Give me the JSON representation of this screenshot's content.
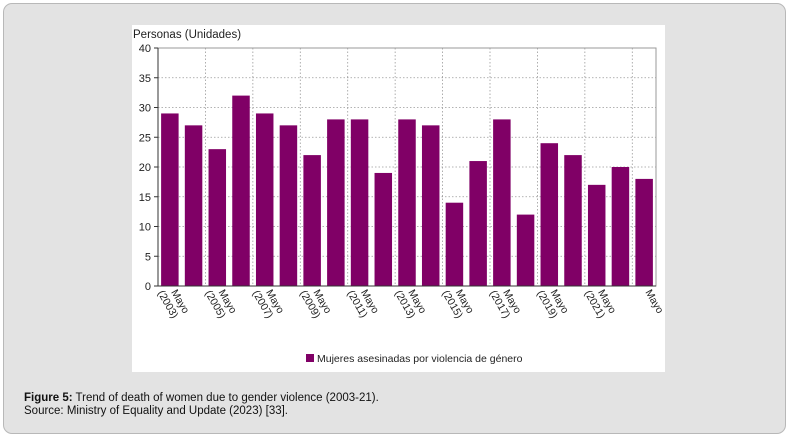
{
  "chart_data": {
    "type": "bar",
    "ylabel": "Personas (Unidades)",
    "ylim": [
      0,
      40
    ],
    "yticks": [
      0,
      5,
      10,
      15,
      20,
      25,
      30,
      35,
      40
    ],
    "grid": true,
    "legend_position": "bottom",
    "x_tick_labels": [
      {
        "line1": "Mayo",
        "line2": "(2003)"
      },
      {
        "line1": "Mayo",
        "line2": "(2005)"
      },
      {
        "line1": "Mayo",
        "line2": "(2007)"
      },
      {
        "line1": "Mayo",
        "line2": "(2009)"
      },
      {
        "line1": "Mayo",
        "line2": "(2011)"
      },
      {
        "line1": "Mayo",
        "line2": "(2013)"
      },
      {
        "line1": "Mayo",
        "line2": "(2015)"
      },
      {
        "line1": "Mayo",
        "line2": "(2017)"
      },
      {
        "line1": "Mayo",
        "line2": "(2019)"
      },
      {
        "line1": "Mayo",
        "line2": "(2021)"
      },
      {
        "line1": "Mayo",
        "line2": ""
      }
    ],
    "series": [
      {
        "name": "Mujeres asesinadas por violencia de género",
        "color": "#800066",
        "values": [
          29,
          27,
          23,
          32,
          29,
          27,
          22,
          28,
          28,
          19,
          28,
          27,
          14,
          21,
          28,
          12,
          24,
          22,
          17,
          20,
          18
        ]
      }
    ]
  },
  "caption": {
    "label": "Figure 5:",
    "text": " Trend of death of women due to gender violence (2003-21).",
    "source": "Source: Ministry of Equality and Update (2023) [33]."
  }
}
